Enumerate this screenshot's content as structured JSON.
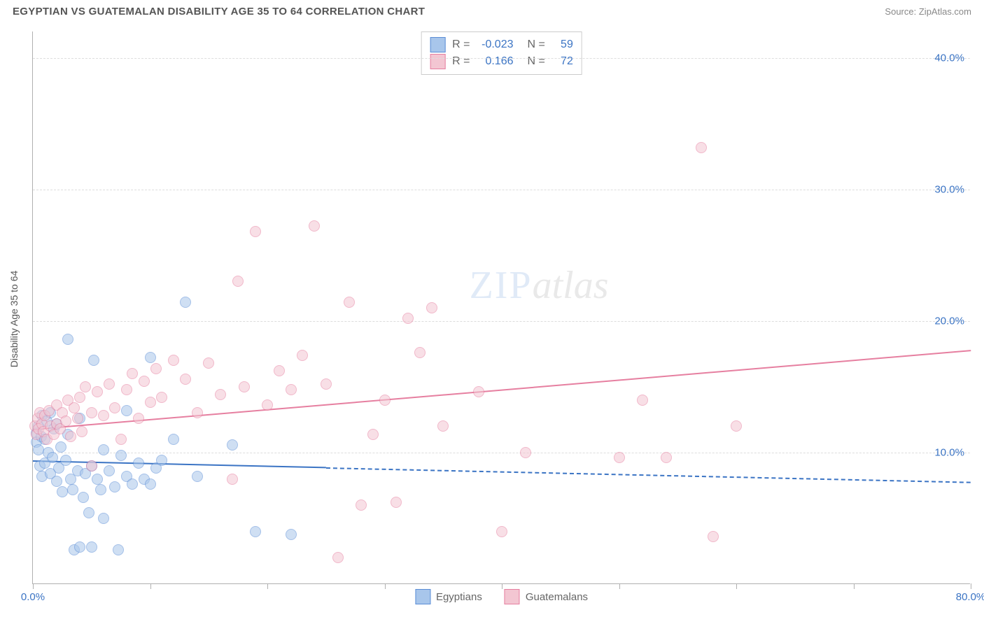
{
  "header": {
    "title": "EGYPTIAN VS GUATEMALAN DISABILITY AGE 35 TO 64 CORRELATION CHART",
    "source_label": "Source:",
    "source_value": "ZipAtlas.com"
  },
  "chart": {
    "type": "scatter",
    "y_axis_title": "Disability Age 35 to 64",
    "xlim": [
      0,
      80
    ],
    "ylim": [
      0,
      42
    ],
    "x_ticks": [
      0,
      10,
      20,
      30,
      40,
      50,
      60,
      70,
      80
    ],
    "x_tick_labels": [
      "0.0%",
      "",
      "",
      "",
      "",
      "",
      "",
      "",
      "80.0%"
    ],
    "y_ticks": [
      10,
      20,
      30,
      40
    ],
    "y_tick_labels": [
      "10.0%",
      "20.0%",
      "30.0%",
      "40.0%"
    ],
    "tick_label_color": "#3b74c4",
    "grid_color": "#dddddd",
    "axis_color": "#b0b0b0",
    "background_color": "#ffffff",
    "marker_radius": 8,
    "marker_opacity": 0.55,
    "series": [
      {
        "name": "Egyptians",
        "fill": "#a8c6eb",
        "stroke": "#5b8dd6",
        "trend": {
          "x1": 0,
          "y1": 9.4,
          "x2": 80,
          "y2": 7.8,
          "solid_until_x": 25,
          "color": "#3b74c4",
          "width": 2.5
        },
        "stats": {
          "r_label": "R =",
          "r_value": "-0.023",
          "n_label": "N =",
          "n_value": "59"
        },
        "points": [
          [
            0.3,
            11.5
          ],
          [
            0.3,
            10.8
          ],
          [
            0.5,
            12.0
          ],
          [
            0.5,
            10.2
          ],
          [
            0.6,
            9.0
          ],
          [
            0.7,
            11.2
          ],
          [
            0.8,
            12.8
          ],
          [
            0.8,
            8.2
          ],
          [
            1.0,
            11.0
          ],
          [
            1.0,
            9.2
          ],
          [
            1.2,
            12.4
          ],
          [
            1.3,
            10.0
          ],
          [
            1.5,
            8.4
          ],
          [
            1.5,
            13.0
          ],
          [
            1.7,
            9.6
          ],
          [
            1.8,
            11.8
          ],
          [
            2.0,
            7.8
          ],
          [
            2.0,
            12.2
          ],
          [
            2.2,
            8.8
          ],
          [
            2.4,
            10.4
          ],
          [
            2.5,
            7.0
          ],
          [
            2.8,
            9.4
          ],
          [
            3.0,
            11.4
          ],
          [
            3.0,
            18.6
          ],
          [
            3.2,
            8.0
          ],
          [
            3.4,
            7.2
          ],
          [
            3.5,
            2.6
          ],
          [
            3.8,
            8.6
          ],
          [
            4.0,
            12.6
          ],
          [
            4.0,
            2.8
          ],
          [
            4.3,
            6.6
          ],
          [
            4.5,
            8.4
          ],
          [
            4.8,
            5.4
          ],
          [
            5.0,
            9.0
          ],
          [
            5.0,
            2.8
          ],
          [
            5.2,
            17.0
          ],
          [
            5.5,
            8.0
          ],
          [
            5.8,
            7.2
          ],
          [
            6.0,
            10.2
          ],
          [
            6.0,
            5.0
          ],
          [
            6.5,
            8.6
          ],
          [
            7.0,
            7.4
          ],
          [
            7.3,
            2.6
          ],
          [
            7.5,
            9.8
          ],
          [
            8.0,
            8.2
          ],
          [
            8.0,
            13.2
          ],
          [
            8.5,
            7.6
          ],
          [
            9.0,
            9.2
          ],
          [
            9.5,
            8.0
          ],
          [
            10.0,
            17.2
          ],
          [
            10.0,
            7.6
          ],
          [
            10.5,
            8.8
          ],
          [
            11.0,
            9.4
          ],
          [
            12.0,
            11.0
          ],
          [
            13.0,
            21.4
          ],
          [
            14.0,
            8.2
          ],
          [
            17.0,
            10.6
          ],
          [
            19.0,
            4.0
          ],
          [
            22.0,
            3.8
          ]
        ]
      },
      {
        "name": "Guatemalans",
        "fill": "#f3c6d2",
        "stroke": "#e67fa0",
        "trend": {
          "x1": 0,
          "y1": 11.8,
          "x2": 80,
          "y2": 17.8,
          "solid_until_x": 80,
          "color": "#e67fa0",
          "width": 2.5
        },
        "stats": {
          "r_label": "R =",
          "r_value": "0.166",
          "n_label": "N =",
          "n_value": "72"
        },
        "points": [
          [
            0.2,
            12.0
          ],
          [
            0.3,
            11.4
          ],
          [
            0.4,
            12.6
          ],
          [
            0.5,
            11.8
          ],
          [
            0.6,
            13.0
          ],
          [
            0.8,
            12.2
          ],
          [
            0.9,
            11.6
          ],
          [
            1.0,
            12.8
          ],
          [
            1.2,
            11.0
          ],
          [
            1.4,
            13.2
          ],
          [
            1.5,
            12.0
          ],
          [
            1.8,
            11.4
          ],
          [
            2.0,
            13.6
          ],
          [
            2.0,
            12.2
          ],
          [
            2.3,
            11.8
          ],
          [
            2.5,
            13.0
          ],
          [
            2.8,
            12.4
          ],
          [
            3.0,
            14.0
          ],
          [
            3.2,
            11.2
          ],
          [
            3.5,
            13.4
          ],
          [
            3.8,
            12.6
          ],
          [
            4.0,
            14.2
          ],
          [
            4.2,
            11.6
          ],
          [
            4.5,
            15.0
          ],
          [
            5.0,
            13.0
          ],
          [
            5.0,
            9.0
          ],
          [
            5.5,
            14.6
          ],
          [
            6.0,
            12.8
          ],
          [
            6.5,
            15.2
          ],
          [
            7.0,
            13.4
          ],
          [
            7.5,
            11.0
          ],
          [
            8.0,
            14.8
          ],
          [
            8.5,
            16.0
          ],
          [
            9.0,
            12.6
          ],
          [
            9.5,
            15.4
          ],
          [
            10.0,
            13.8
          ],
          [
            10.5,
            16.4
          ],
          [
            11.0,
            14.2
          ],
          [
            12.0,
            17.0
          ],
          [
            13.0,
            15.6
          ],
          [
            14.0,
            13.0
          ],
          [
            15.0,
            16.8
          ],
          [
            16.0,
            14.4
          ],
          [
            17.0,
            8.0
          ],
          [
            17.5,
            23.0
          ],
          [
            18.0,
            15.0
          ],
          [
            19.0,
            26.8
          ],
          [
            20.0,
            13.6
          ],
          [
            21.0,
            16.2
          ],
          [
            22.0,
            14.8
          ],
          [
            23.0,
            17.4
          ],
          [
            24.0,
            27.2
          ],
          [
            25.0,
            15.2
          ],
          [
            26.0,
            2.0
          ],
          [
            27.0,
            21.4
          ],
          [
            28.0,
            6.0
          ],
          [
            29.0,
            11.4
          ],
          [
            30.0,
            14.0
          ],
          [
            31.0,
            6.2
          ],
          [
            32.0,
            20.2
          ],
          [
            33.0,
            17.6
          ],
          [
            34.0,
            21.0
          ],
          [
            35.0,
            12.0
          ],
          [
            38.0,
            14.6
          ],
          [
            40.0,
            4.0
          ],
          [
            42.0,
            10.0
          ],
          [
            50.0,
            9.6
          ],
          [
            52.0,
            14.0
          ],
          [
            54.0,
            9.6
          ],
          [
            57.0,
            33.2
          ],
          [
            58.0,
            3.6
          ],
          [
            60.0,
            12.0
          ]
        ]
      }
    ],
    "legend_bottom": [
      {
        "label": "Egyptians",
        "fill": "#a8c6eb",
        "stroke": "#5b8dd6"
      },
      {
        "label": "Guatemalans",
        "fill": "#f3c6d2",
        "stroke": "#e67fa0"
      }
    ],
    "watermark": {
      "part1": "ZIP",
      "part2": "atlas"
    }
  }
}
